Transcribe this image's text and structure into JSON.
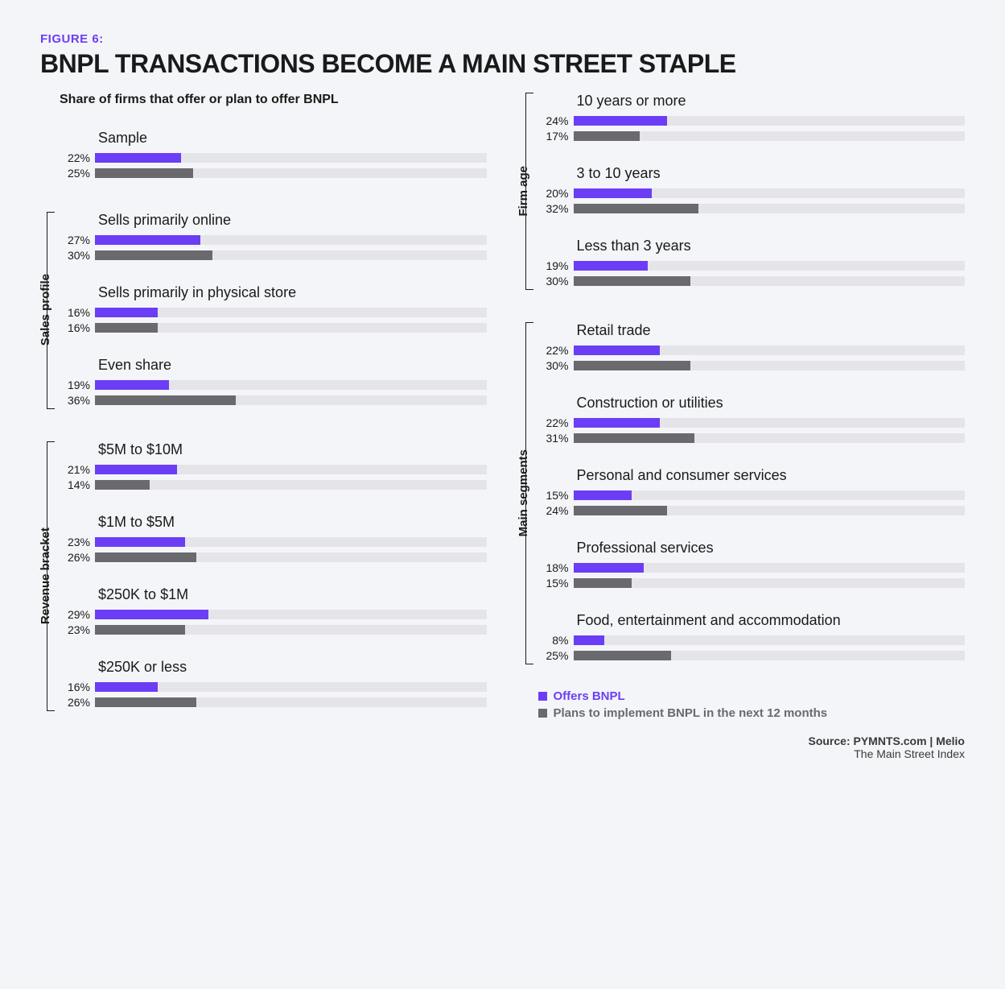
{
  "figure_label": "FIGURE 6:",
  "figure_title": "BNPL TRANSACTIONS BECOME A MAIN STREET STAPLE",
  "figure_subtitle": "Share of firms that offer or plan to offer BNPL",
  "colors": {
    "accent": "#6b3ef5",
    "offers": "#6b3ef5",
    "plans": "#6a6a6e",
    "track": "#e5e5e9",
    "text": "#1a1a1a",
    "bg": "#f4f5f8"
  },
  "bar_max_pct": 100,
  "sample": {
    "label": "Sample",
    "offers": 22,
    "plans": 25
  },
  "sections_left": [
    {
      "name": "Sales profile",
      "entries": [
        {
          "label": "Sells primarily online",
          "offers": 27,
          "plans": 30
        },
        {
          "label": "Sells primarily in physical store",
          "offers": 16,
          "plans": 16
        },
        {
          "label": "Even share",
          "offers": 19,
          "plans": 36
        }
      ]
    },
    {
      "name": "Revenue bracket",
      "entries": [
        {
          "label": "$5M to $10M",
          "offers": 21,
          "plans": 14
        },
        {
          "label": "$1M to $5M",
          "offers": 23,
          "plans": 26
        },
        {
          "label": "$250K to $1M",
          "offers": 29,
          "plans": 23
        },
        {
          "label": "$250K or less",
          "offers": 16,
          "plans": 26
        }
      ]
    }
  ],
  "sections_right": [
    {
      "name": "Firm age",
      "entries": [
        {
          "label": "10 years or more",
          "offers": 24,
          "plans": 17
        },
        {
          "label": "3 to 10 years",
          "offers": 20,
          "plans": 32
        },
        {
          "label": "Less than 3 years",
          "offers": 19,
          "plans": 30
        }
      ]
    },
    {
      "name": "Main segments",
      "entries": [
        {
          "label": "Retail trade",
          "offers": 22,
          "plans": 30
        },
        {
          "label": "Construction or utilities",
          "offers": 22,
          "plans": 31
        },
        {
          "label": "Personal and consumer services",
          "offers": 15,
          "plans": 24
        },
        {
          "label": "Professional services",
          "offers": 18,
          "plans": 15
        },
        {
          "label": "Food, entertainment and accommodation",
          "offers": 8,
          "plans": 25
        }
      ]
    }
  ],
  "legend": {
    "offers": "Offers BNPL",
    "plans": "Plans to implement BNPL in the next 12 months"
  },
  "source": {
    "line1": "Source: PYMNTS.com  |  Melio",
    "line2": "The Main Street Index"
  }
}
